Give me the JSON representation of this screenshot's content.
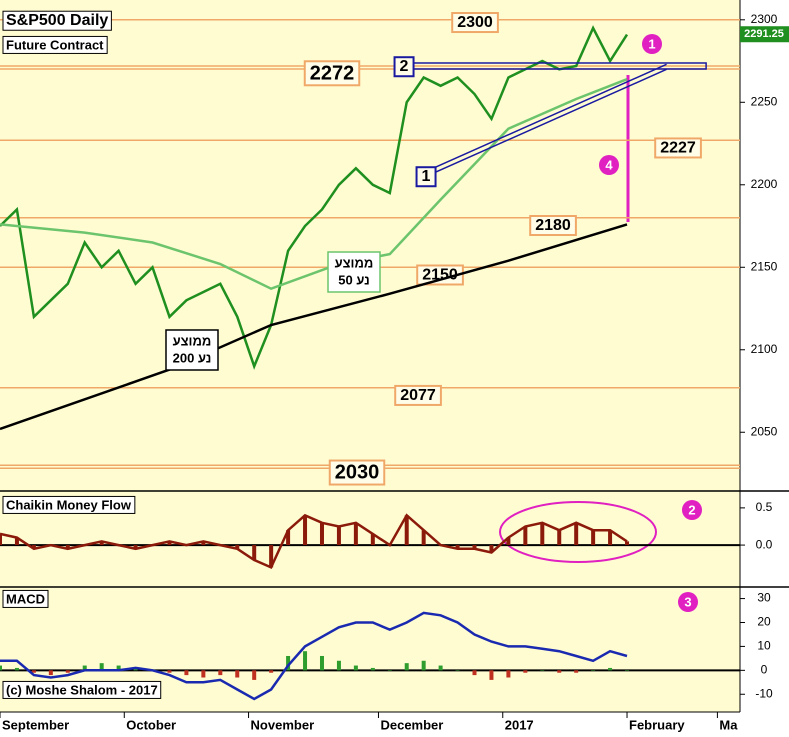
{
  "chart_data": [
    {
      "type": "line",
      "title": "S&P500 Daily",
      "subtitle": "Future Contract",
      "x": [
        0,
        3,
        6,
        9,
        12,
        15,
        18,
        21,
        24,
        27,
        30,
        33,
        36,
        39,
        42,
        45,
        48,
        51,
        54,
        57,
        60,
        63,
        66,
        69,
        72,
        75,
        78,
        81,
        84,
        87,
        90,
        93,
        96,
        99,
        102,
        105,
        108,
        111
      ],
      "xlim": [
        0,
        131
      ],
      "ylim": [
        2015,
        2312
      ],
      "yticks": [
        2050,
        2100,
        2150,
        2200,
        2250,
        2300
      ],
      "series": [
        {
          "color": "#1f8f1f",
          "values": [
            2175,
            2185,
            2120,
            2130,
            2140,
            2165,
            2150,
            2160,
            2140,
            2150,
            2120,
            2130,
            2135,
            2140,
            2120,
            2090,
            2115,
            2160,
            2175,
            2185,
            2200,
            2210,
            2200,
            2195,
            2250,
            2265,
            2260,
            2265,
            2255,
            2240,
            2265,
            2270,
            2275,
            2270,
            2272,
            2295,
            2275,
            2291
          ]
        },
        {
          "color": "#6cc46c",
          "x": [
            0,
            15,
            27,
            39,
            48,
            60,
            69,
            78,
            90,
            102,
            111
          ],
          "values": [
            2176,
            2171,
            2165,
            2152,
            2137,
            2152,
            2158,
            2191,
            2234,
            2252,
            2264
          ]
        },
        {
          "color": "#000000",
          "x": [
            0,
            30,
            48,
            69,
            90,
            111
          ],
          "values": [
            2052,
            2088,
            2115,
            2134,
            2154,
            2176
          ]
        }
      ],
      "levels": [
        2300,
        2272,
        2227,
        2180,
        2150,
        2077,
        2030
      ],
      "level_color": "#f0a868",
      "trendline": {
        "x": [
          76,
          118
        ],
        "values": [
          2209,
          2273
        ],
        "color": "#1a1aa0"
      },
      "resistance": {
        "x": [
          72,
          125
        ],
        "value": 2272
      },
      "last_price": 2291.25,
      "ma_labels": [
        [
          "ממוצע",
          "נע 50"
        ],
        [
          "ממוצע",
          "נע 200"
        ]
      ],
      "markers": [
        "1",
        "4"
      ],
      "boxes": [
        "2",
        "1"
      ]
    },
    {
      "type": "bar",
      "title": "Chaikin Money Flow",
      "x": [
        0,
        3,
        6,
        9,
        12,
        15,
        18,
        21,
        24,
        27,
        30,
        33,
        36,
        39,
        42,
        45,
        48,
        51,
        54,
        57,
        60,
        63,
        66,
        69,
        72,
        75,
        78,
        81,
        84,
        87,
        90,
        93,
        96,
        99,
        102,
        105,
        108,
        111
      ],
      "xlim": [
        0,
        131
      ],
      "ylim": [
        -0.55,
        0.7
      ],
      "yticks": [
        0.5,
        {
          "value": 0,
          "label": "0.0"
        }
      ],
      "series": [
        {
          "color": "#8b1a0a",
          "values": [
            0.15,
            0.1,
            -0.05,
            0,
            -0.05,
            0,
            0.05,
            0,
            -0.05,
            0,
            0.05,
            0,
            0.05,
            0,
            -0.05,
            -0.2,
            -0.3,
            0.2,
            0.4,
            0.3,
            0.25,
            0.3,
            0.15,
            0,
            0.4,
            0.2,
            0,
            -0.05,
            -0.05,
            -0.1,
            0.1,
            0.25,
            0.3,
            0.2,
            0.3,
            0.2,
            0.2,
            0.05
          ]
        }
      ],
      "markers": [
        "2"
      ]
    },
    {
      "type": "line",
      "title": "MACD",
      "note": "(c) Moshe Shalom - 2017",
      "x": [
        0,
        3,
        6,
        9,
        12,
        15,
        18,
        21,
        24,
        27,
        30,
        33,
        36,
        39,
        42,
        45,
        48,
        51,
        54,
        57,
        60,
        63,
        66,
        69,
        72,
        75,
        78,
        81,
        84,
        87,
        90,
        93,
        96,
        99,
        102,
        105,
        108,
        111
      ],
      "xlim": [
        0,
        131
      ],
      "ylim": [
        -17,
        34
      ],
      "yticks": [
        -10,
        0,
        10,
        20,
        30
      ],
      "xticks": [
        {
          "value": 0,
          "label": "September"
        },
        {
          "value": 22,
          "label": "October"
        },
        {
          "value": 44,
          "label": "November"
        },
        {
          "value": 67,
          "label": "December"
        },
        {
          "value": 89,
          "label": "2017"
        },
        {
          "value": 111,
          "label": "February"
        },
        {
          "value": 127,
          "label": "Ma"
        }
      ],
      "series": [
        {
          "type": "bar",
          "color": "#2e9d2e",
          "neg_color": "#c03020",
          "values": [
            2,
            1,
            -1,
            -2,
            -1,
            2,
            3,
            2,
            1,
            0,
            -1,
            -2,
            -3,
            -2,
            -3,
            -4,
            -1,
            6,
            8,
            6,
            4,
            2,
            1,
            0,
            3,
            4,
            2,
            0,
            -2,
            -4,
            -3,
            -1,
            0,
            -1,
            -1,
            0,
            1,
            0
          ]
        },
        {
          "type": "line",
          "color": "#1a2ab0",
          "values": [
            4,
            4,
            -2,
            -3,
            -2,
            0,
            0,
            0,
            1,
            0,
            -2,
            -5,
            -5,
            -4,
            -8,
            -12,
            -8,
            2,
            10,
            14,
            18,
            20,
            20,
            17,
            20,
            24,
            23,
            20,
            15,
            12,
            10,
            10,
            9,
            8,
            6,
            4,
            8,
            6
          ]
        }
      ],
      "markers": [
        "3"
      ]
    }
  ]
}
